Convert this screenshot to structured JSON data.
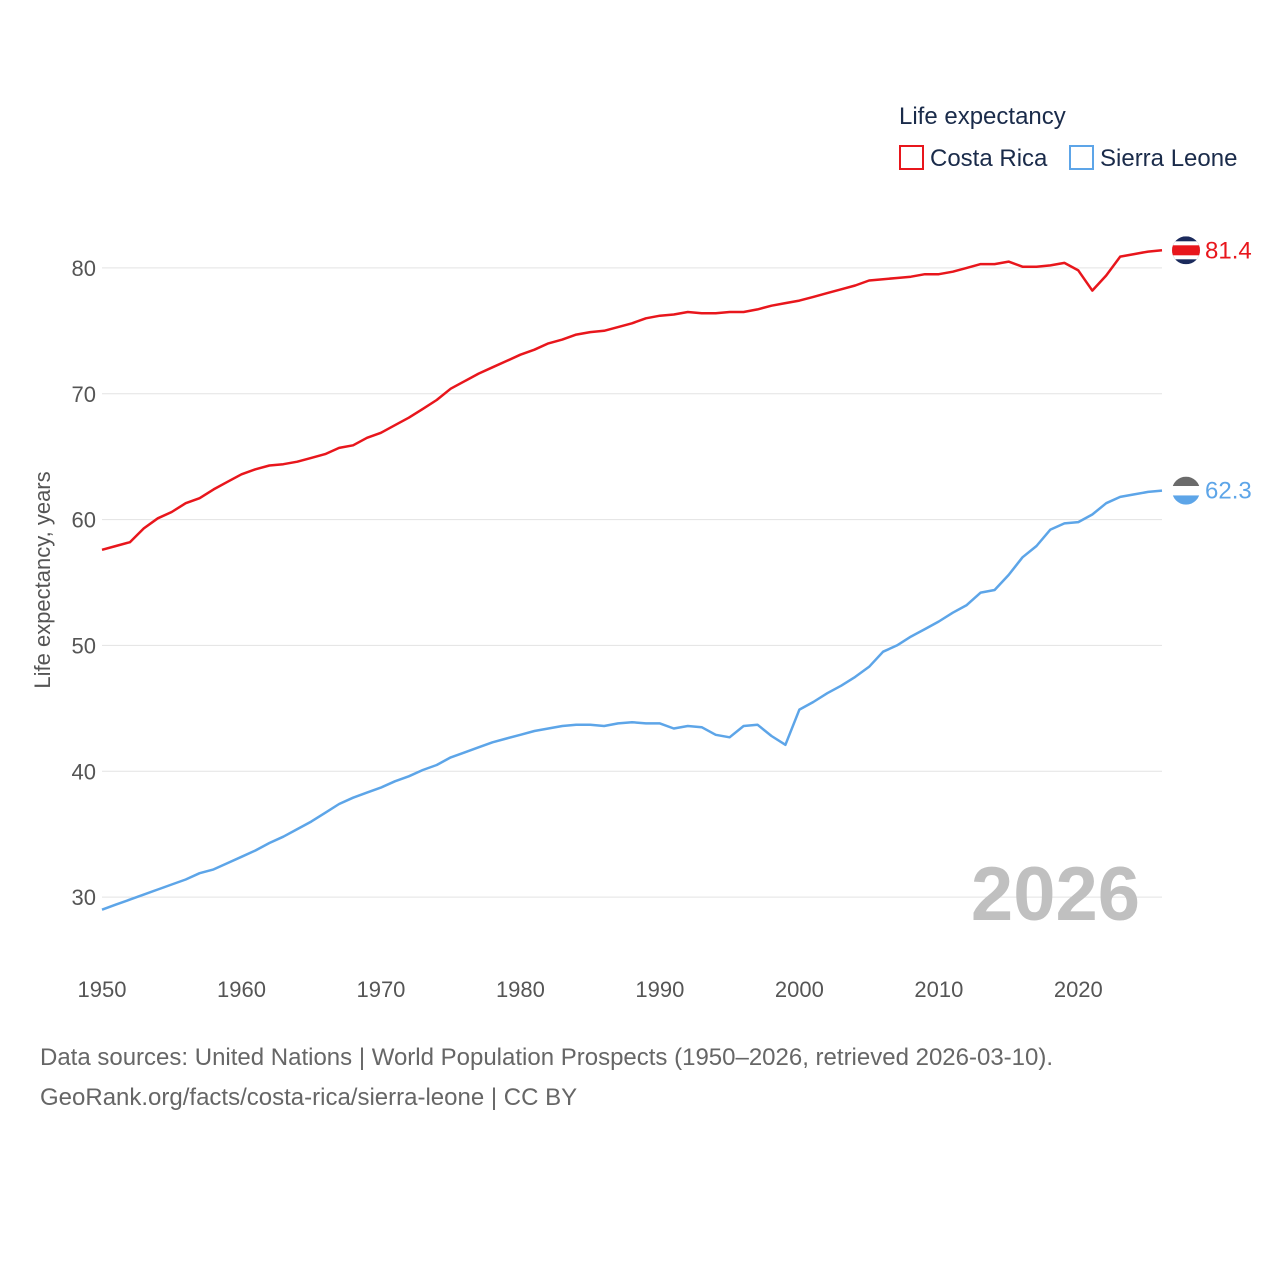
{
  "chart_data": {
    "type": "line",
    "title": "",
    "legend_title": "Life expectancy",
    "ylabel": "Life expectancy, years",
    "xlabel": "",
    "xlim": [
      1950,
      2026
    ],
    "ylim": [
      25,
      85
    ],
    "x_ticks": [
      1950,
      1960,
      1970,
      1980,
      1990,
      2000,
      2010,
      2020
    ],
    "y_ticks": [
      30,
      40,
      50,
      60,
      70,
      80
    ],
    "grid": true,
    "legend_position": "top-right",
    "year_watermark": "2026",
    "years": [
      1950,
      1951,
      1952,
      1953,
      1954,
      1955,
      1956,
      1957,
      1958,
      1959,
      1960,
      1961,
      1962,
      1963,
      1964,
      1965,
      1966,
      1967,
      1968,
      1969,
      1970,
      1971,
      1972,
      1973,
      1974,
      1975,
      1976,
      1977,
      1978,
      1979,
      1980,
      1981,
      1982,
      1983,
      1984,
      1985,
      1986,
      1987,
      1988,
      1989,
      1990,
      1991,
      1992,
      1993,
      1994,
      1995,
      1996,
      1997,
      1998,
      1999,
      2000,
      2001,
      2002,
      2003,
      2004,
      2005,
      2006,
      2007,
      2008,
      2009,
      2010,
      2011,
      2012,
      2013,
      2014,
      2015,
      2016,
      2017,
      2018,
      2019,
      2020,
      2021,
      2022,
      2023,
      2024,
      2025,
      2026
    ],
    "series": [
      {
        "name": "Costa Rica",
        "color": "#e8161c",
        "end_label": "81.4",
        "values": [
          57.6,
          57.9,
          58.2,
          59.3,
          60.1,
          60.6,
          61.3,
          61.7,
          62.4,
          63.0,
          63.6,
          64.0,
          64.3,
          64.4,
          64.6,
          64.9,
          65.2,
          65.7,
          65.9,
          66.5,
          66.9,
          67.5,
          68.1,
          68.8,
          69.5,
          70.4,
          71.0,
          71.6,
          72.1,
          72.6,
          73.1,
          73.5,
          74.0,
          74.3,
          74.7,
          74.9,
          75.0,
          75.3,
          75.6,
          76.0,
          76.2,
          76.3,
          76.5,
          76.4,
          76.4,
          76.5,
          76.5,
          76.7,
          77.0,
          77.2,
          77.4,
          77.7,
          78.0,
          78.3,
          78.6,
          79.0,
          79.1,
          79.2,
          79.3,
          79.5,
          79.5,
          79.7,
          80.0,
          80.3,
          80.3,
          80.5,
          80.1,
          80.1,
          80.2,
          80.4,
          79.8,
          78.2,
          79.4,
          80.9,
          81.1,
          81.3,
          81.4
        ]
      },
      {
        "name": "Sierra Leone",
        "color": "#5da5e8",
        "end_label": "62.3",
        "values": [
          29.0,
          29.4,
          29.8,
          30.2,
          30.6,
          31.0,
          31.4,
          31.9,
          32.2,
          32.7,
          33.2,
          33.7,
          34.3,
          34.8,
          35.4,
          36.0,
          36.7,
          37.4,
          37.9,
          38.3,
          38.7,
          39.2,
          39.6,
          40.1,
          40.5,
          41.1,
          41.5,
          41.9,
          42.3,
          42.6,
          42.9,
          43.2,
          43.4,
          43.6,
          43.7,
          43.7,
          43.6,
          43.8,
          43.9,
          43.8,
          43.8,
          43.4,
          43.6,
          43.5,
          42.9,
          42.7,
          43.6,
          43.7,
          42.8,
          42.1,
          44.9,
          45.5,
          46.2,
          46.8,
          47.5,
          48.3,
          49.5,
          50.0,
          50.7,
          51.3,
          51.9,
          52.6,
          53.2,
          54.2,
          54.4,
          55.6,
          57.0,
          57.9,
          59.2,
          59.7,
          59.8,
          60.4,
          61.3,
          61.8,
          62.0,
          62.2,
          62.3
        ]
      }
    ]
  },
  "footer": {
    "line1": "Data sources: United Nations | World Population Prospects (1950–2026, retrieved 2026-03-10).",
    "line2": "GeoRank.org/facts/costa-rica/sierra-leone | CC BY"
  }
}
